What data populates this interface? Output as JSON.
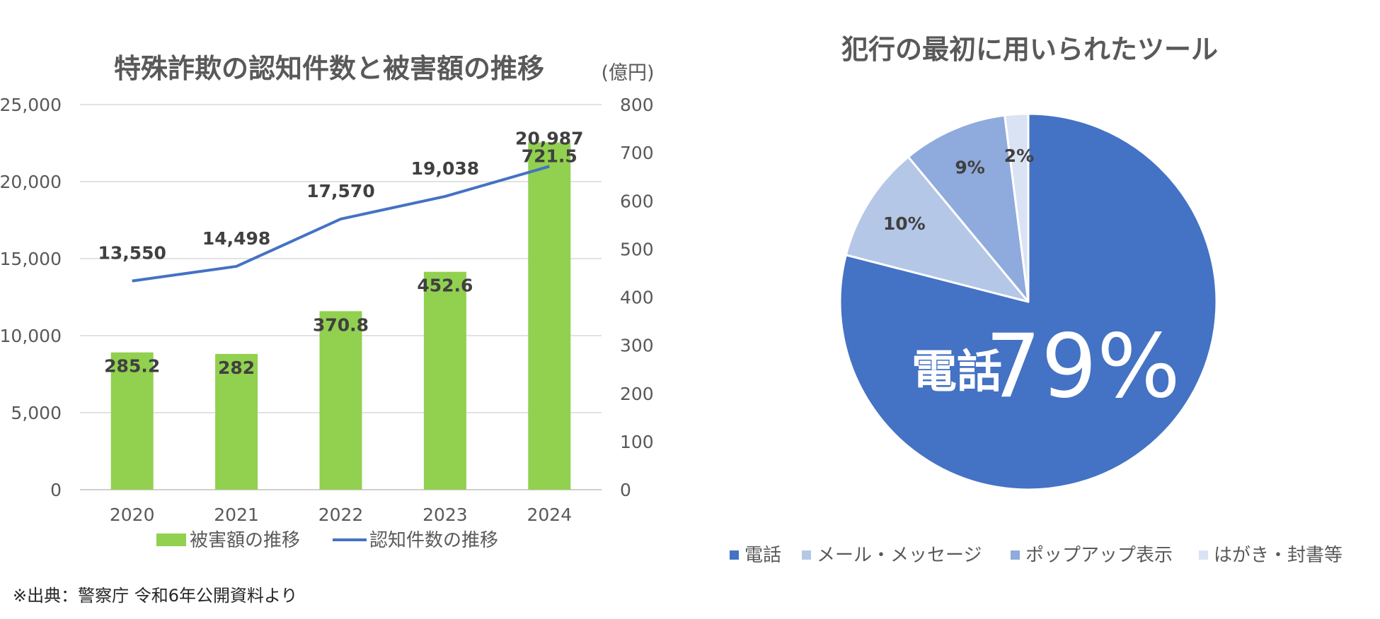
{
  "chart_data": [
    {
      "type": "bar+line",
      "title": "特殊詐欺の認知件数と被害額の推移",
      "y2_unit_label": "(億円)",
      "categories": [
        "2020",
        "2021",
        "2022",
        "2023",
        "2024"
      ],
      "ylim": [
        0,
        25000
      ],
      "yticks": [
        "0",
        "5,000",
        "10,000",
        "15,000",
        "20,000",
        "25,000"
      ],
      "y2lim": [
        0,
        800
      ],
      "y2ticks": [
        "0",
        "100",
        "200",
        "300",
        "400",
        "500",
        "600",
        "700",
        "800"
      ],
      "series": [
        {
          "name": "被害額の推移",
          "type": "bar",
          "axis": "right",
          "color": "#92D050",
          "values": [
            285.2,
            282,
            370.8,
            452.6,
            721.5
          ],
          "labels": [
            "285.2",
            "282",
            "370.8",
            "452.6",
            "721.5"
          ]
        },
        {
          "name": "認知件数の推移",
          "type": "line",
          "axis": "left",
          "color": "#4472C4",
          "values": [
            13550,
            14498,
            17570,
            19038,
            20987
          ],
          "labels": [
            "13,550",
            "14,498",
            "17,570",
            "19,038",
            "20,987"
          ]
        }
      ],
      "grid": true,
      "legend": "bottom"
    },
    {
      "type": "pie",
      "title": "犯行の最初に用いられたツール",
      "slices": [
        {
          "name": "電話",
          "value": 79,
          "label": "79%",
          "color": "#4472C4"
        },
        {
          "name": "メール・メッセージ",
          "value": 10,
          "label": "10%",
          "color": "#B4C7E7"
        },
        {
          "name": "ポップアップ表示",
          "value": 9,
          "label": "9%",
          "color": "#8FAADC"
        },
        {
          "name": "はがき・封書等",
          "value": 2,
          "label": "2%",
          "color": "#DAE3F3"
        }
      ],
      "callout": {
        "name": "電話",
        "value": "79%"
      },
      "legend": "bottom"
    }
  ],
  "footer": {
    "source": "※出典：警察庁 令和6年公開資料より"
  }
}
